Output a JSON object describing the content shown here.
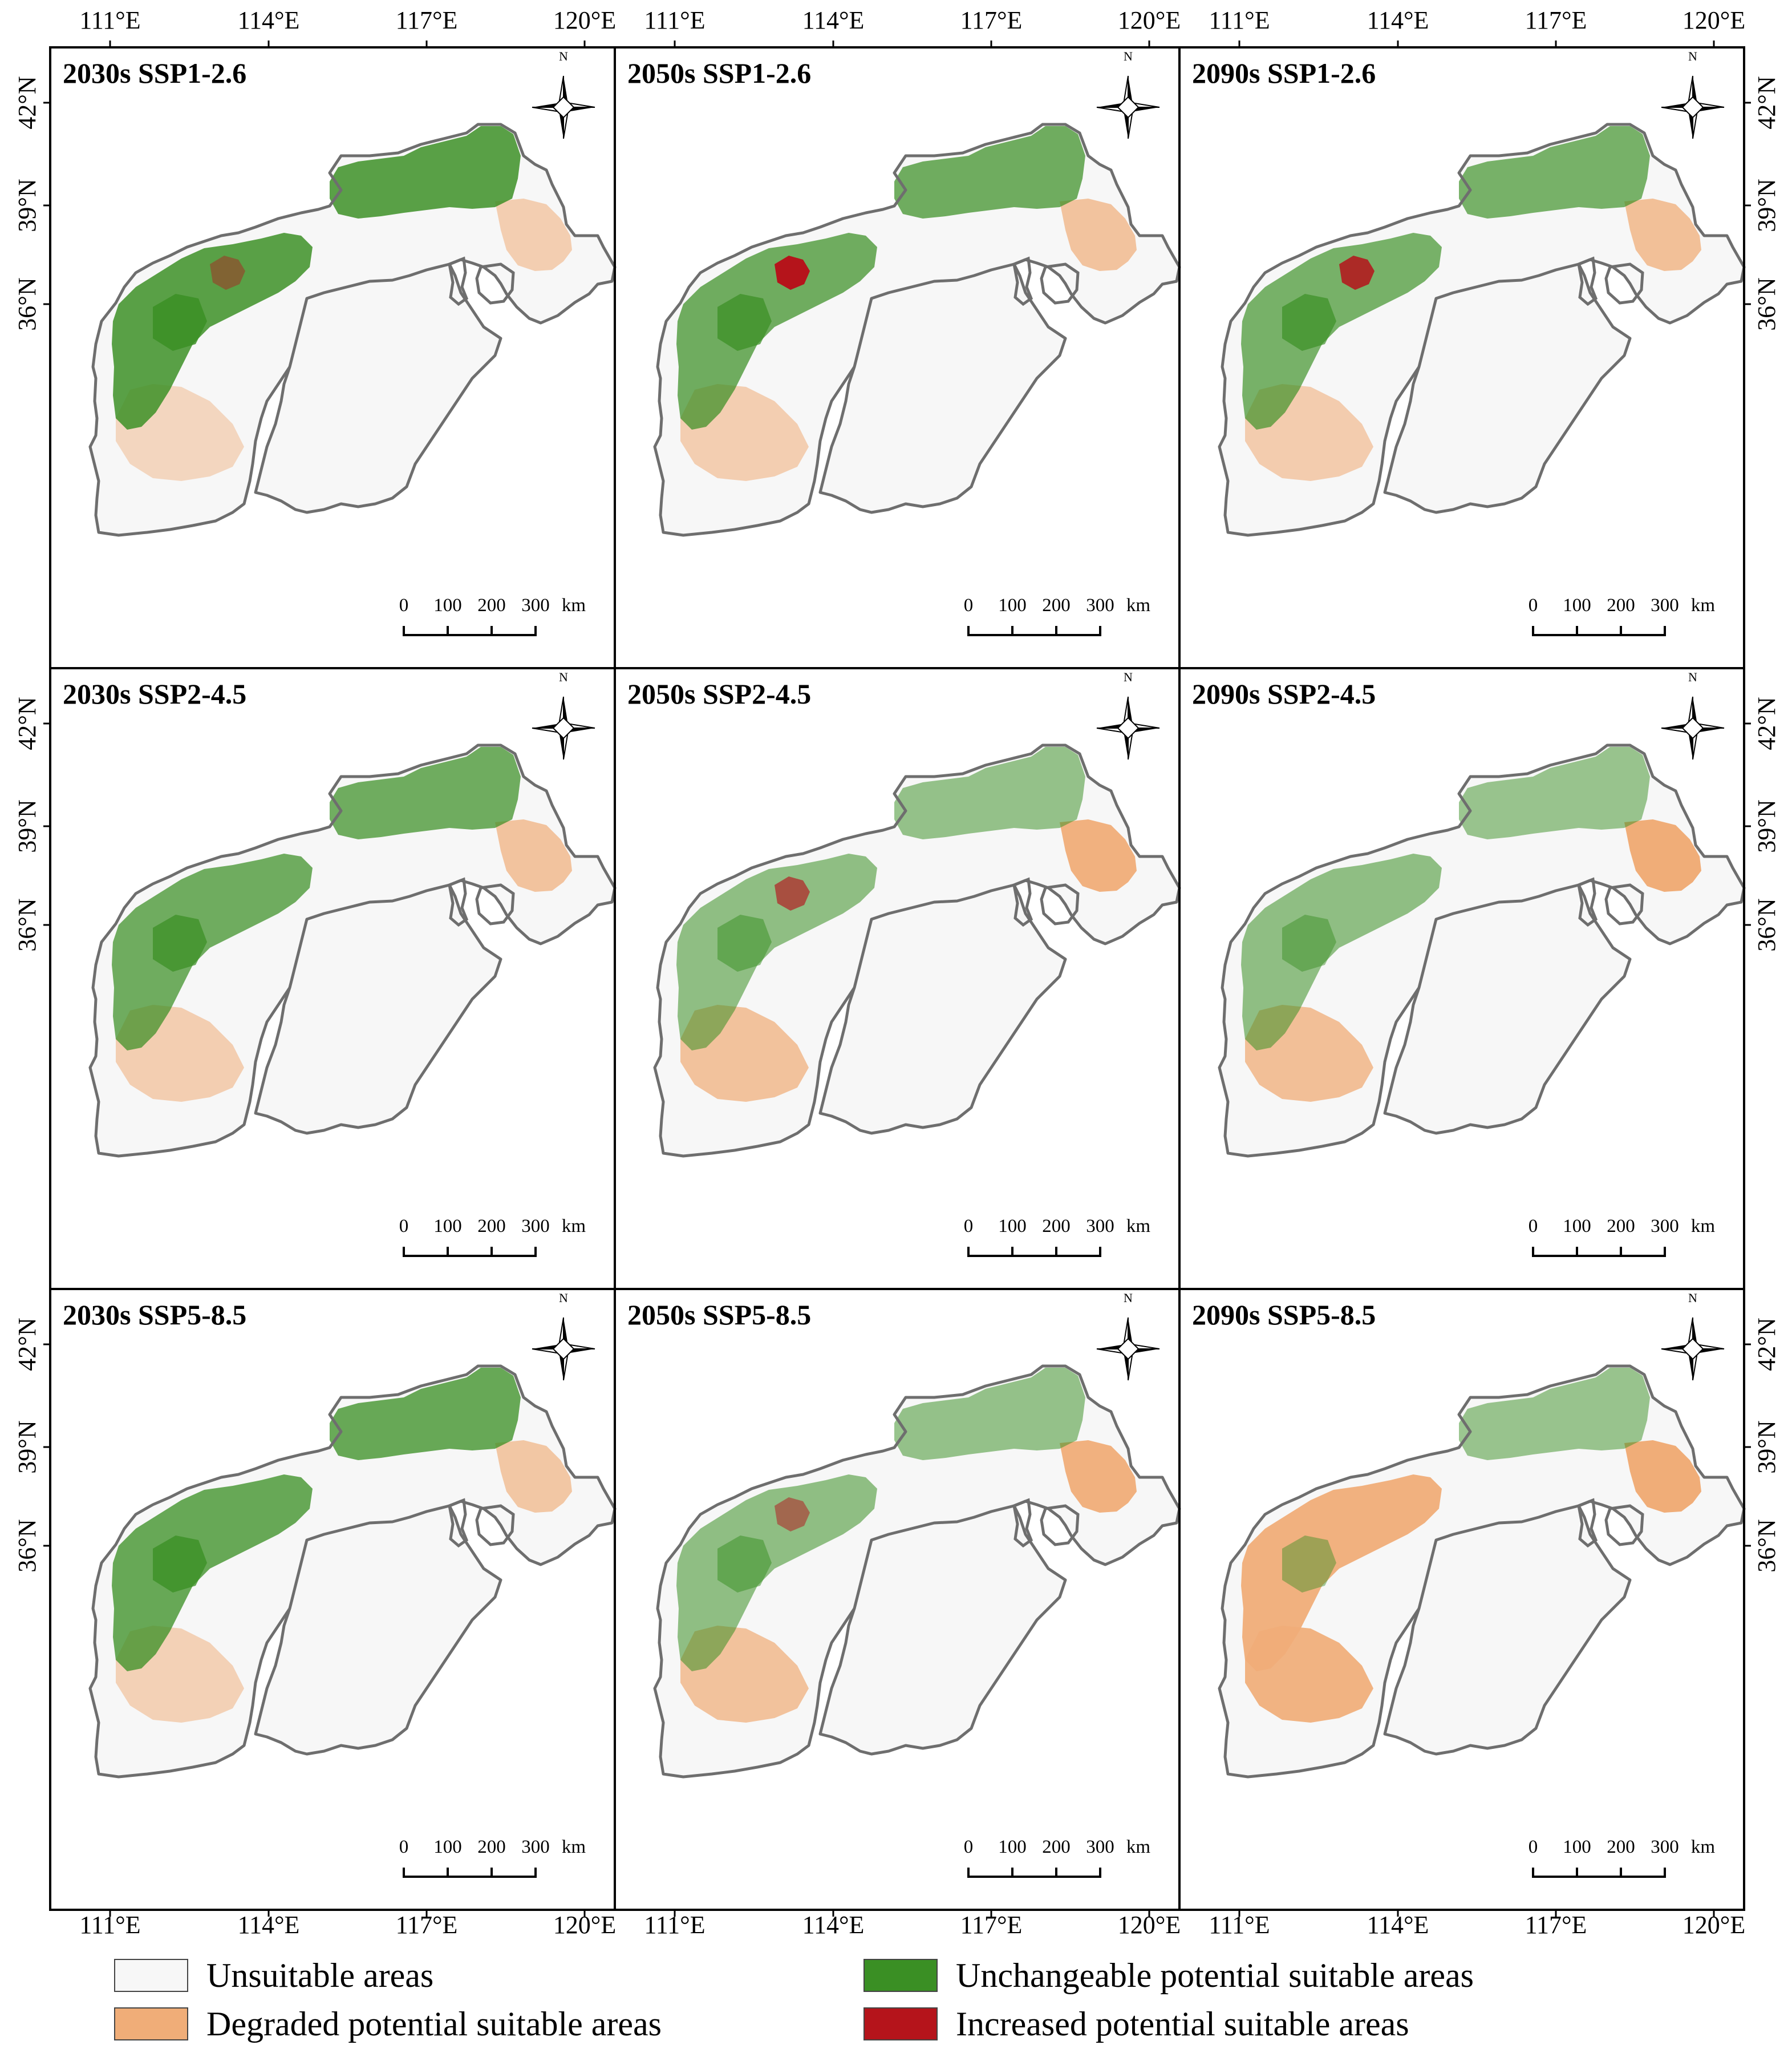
{
  "figure": {
    "lon_labels": [
      "111°E",
      "114°E",
      "117°E",
      "120°E"
    ],
    "lat_labels": [
      "42°N",
      "39°N",
      "36°N"
    ],
    "north_label": "N",
    "scale_bar": {
      "ticks": [
        "0",
        "100",
        "200",
        "300"
      ],
      "unit": "km"
    },
    "panels": [
      {
        "title": "2030s SSP1-2.6",
        "period": "2030s",
        "scenario": "SSP1-2.6",
        "degraded_level": 0.2,
        "increased_level": 0.2
      },
      {
        "title": "2050s SSP1-2.6",
        "period": "2050s",
        "scenario": "SSP1-2.6",
        "degraded_level": 0.35,
        "increased_level": 1.0
      },
      {
        "title": "2090s SSP1-2.6",
        "period": "2090s",
        "scenario": "SSP1-2.6",
        "degraded_level": 0.4,
        "increased_level": 0.8
      },
      {
        "title": "2030s SSP2-4.5",
        "period": "2030s",
        "scenario": "SSP2-4.5",
        "degraded_level": 0.35,
        "increased_level": 0.0
      },
      {
        "title": "2050s SSP2-4.5",
        "period": "2050s",
        "scenario": "SSP2-4.5",
        "degraded_level": 0.6,
        "increased_level": 0.5
      },
      {
        "title": "2090s SSP2-4.5",
        "period": "2090s",
        "scenario": "SSP2-4.5",
        "degraded_level": 0.65,
        "increased_level": 0.0
      },
      {
        "title": "2030s SSP5-8.5",
        "period": "2030s",
        "scenario": "SSP5-8.5",
        "degraded_level": 0.3,
        "increased_level": 0.0
      },
      {
        "title": "2050s SSP5-8.5",
        "period": "2050s",
        "scenario": "SSP5-8.5",
        "degraded_level": 0.6,
        "increased_level": 0.3
      },
      {
        "title": "2090s SSP5-8.5",
        "period": "2090s",
        "scenario": "SSP5-8.5",
        "degraded_level": 0.9,
        "increased_level": 0.0
      }
    ]
  },
  "legend": [
    {
      "label": "Unsuitable areas",
      "color": "#f7f7f7"
    },
    {
      "label": "Degraded potential suitable areas",
      "color": "#f0ad78"
    },
    {
      "label": "Unchangeable potential suitable areas",
      "color": "#3a8f24"
    },
    {
      "label": "Increased potential suitable areas",
      "color": "#b5141b"
    }
  ],
  "colors": {
    "unsuitable": "#f7f7f7",
    "degraded": "#f0ad78",
    "unchangeable": "#3a8f24",
    "increased": "#b5141b",
    "boundary": "#6e6e6e",
    "frame": "#000000"
  }
}
